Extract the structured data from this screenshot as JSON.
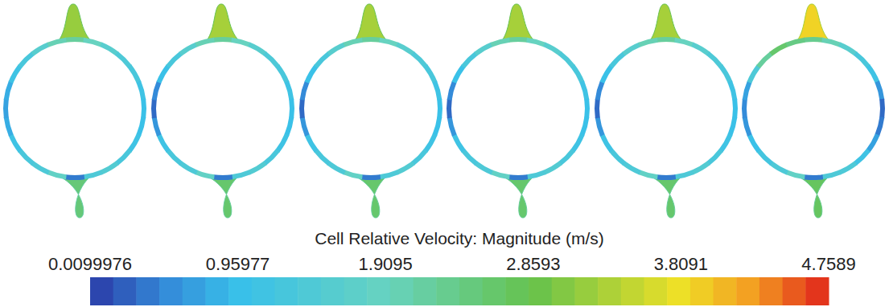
{
  "chart_data": {
    "type": "contour",
    "title": "Cell Relative Velocity: Magnitude (m/s)",
    "colorbar": {
      "range": [
        0.0099976,
        4.7589
      ],
      "ticks": [
        0.0099976,
        0.95977,
        1.9095,
        2.8593,
        3.8091,
        4.7589
      ]
    },
    "rings": [
      {
        "cells": [
          2.2,
          1.9,
          1.6,
          1.4,
          1.3,
          1.1,
          1.0,
          1.0,
          1.1,
          1.3,
          1.5,
          1.4,
          0.4,
          1.8,
          1.4,
          1.3,
          1.1,
          0.8,
          0.7,
          0.8,
          1.1,
          1.3,
          1.6,
          2.0
        ],
        "top_lobe": 3.2,
        "bottom_lobe": 2.5
      },
      {
        "cells": [
          2.2,
          1.9,
          1.6,
          1.4,
          1.3,
          1.1,
          1.0,
          1.0,
          1.1,
          1.3,
          1.5,
          1.4,
          0.4,
          1.8,
          1.4,
          1.3,
          1.1,
          0.6,
          0.3,
          0.5,
          1.0,
          1.3,
          1.6,
          2.0
        ],
        "top_lobe": 3.3,
        "bottom_lobe": 2.6
      },
      {
        "cells": [
          2.2,
          1.9,
          1.6,
          1.4,
          1.3,
          1.1,
          1.0,
          1.0,
          1.1,
          1.3,
          1.5,
          1.4,
          0.4,
          1.8,
          1.4,
          1.3,
          1.1,
          0.6,
          0.3,
          0.5,
          1.0,
          1.3,
          1.6,
          2.0
        ],
        "top_lobe": 3.3,
        "bottom_lobe": 2.6
      },
      {
        "cells": [
          2.2,
          1.9,
          1.6,
          1.4,
          1.3,
          1.1,
          1.0,
          1.0,
          1.1,
          1.3,
          1.5,
          1.4,
          0.4,
          1.8,
          1.4,
          1.3,
          1.1,
          0.6,
          0.3,
          0.5,
          1.0,
          1.3,
          1.6,
          2.0
        ],
        "top_lobe": 3.3,
        "bottom_lobe": 2.6
      },
      {
        "cells": [
          2.2,
          1.9,
          1.6,
          1.4,
          1.3,
          1.1,
          1.0,
          1.0,
          1.1,
          1.3,
          1.5,
          1.4,
          0.4,
          1.8,
          1.4,
          1.3,
          1.1,
          0.6,
          0.3,
          0.5,
          1.0,
          1.3,
          1.6,
          2.0
        ],
        "top_lobe": 3.3,
        "bottom_lobe": 2.6
      },
      {
        "cells": [
          2.3,
          2.0,
          1.6,
          1.3,
          1.1,
          0.6,
          0.3,
          0.4,
          0.7,
          1.1,
          1.4,
          1.4,
          0.4,
          1.8,
          1.4,
          1.2,
          1.0,
          0.6,
          0.5,
          0.7,
          1.4,
          2.2,
          2.6,
          2.4
        ],
        "top_lobe": 3.9,
        "bottom_lobe": 2.7
      }
    ]
  }
}
